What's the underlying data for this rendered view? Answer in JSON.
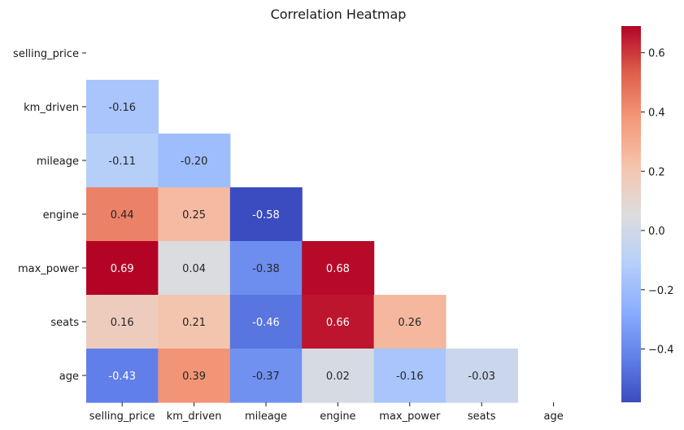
{
  "chart_data": {
    "type": "heatmap",
    "title": "Correlation Heatmap",
    "xlabel": "",
    "ylabel": "",
    "variables": [
      "selling_price",
      "km_driven",
      "mileage",
      "engine",
      "max_power",
      "seats",
      "age"
    ],
    "mask": "upper-triangle-including-diagonal",
    "matrix": [
      [
        null,
        null,
        null,
        null,
        null,
        null,
        null
      ],
      [
        -0.16,
        null,
        null,
        null,
        null,
        null,
        null
      ],
      [
        -0.11,
        -0.2,
        null,
        null,
        null,
        null,
        null
      ],
      [
        0.44,
        0.25,
        -0.58,
        null,
        null,
        null,
        null
      ],
      [
        0.69,
        0.04,
        -0.38,
        0.68,
        null,
        null,
        null
      ],
      [
        0.16,
        0.21,
        -0.46,
        0.66,
        0.26,
        null,
        null
      ],
      [
        -0.43,
        0.39,
        -0.37,
        0.02,
        -0.16,
        -0.03,
        null
      ]
    ],
    "annotations": [
      [
        null,
        null,
        null,
        null,
        null,
        null,
        null
      ],
      [
        "-0.16",
        null,
        null,
        null,
        null,
        null,
        null
      ],
      [
        "-0.11",
        "-0.20",
        null,
        null,
        null,
        null,
        null
      ],
      [
        "0.44",
        "0.25",
        "-0.58",
        null,
        null,
        null,
        null
      ],
      [
        "0.69",
        "0.04",
        "-0.38",
        "0.68",
        null,
        null,
        null
      ],
      [
        "0.16",
        "0.21",
        "-0.46",
        "0.66",
        "0.26",
        null,
        null
      ],
      [
        "-0.43",
        "0.39",
        "-0.37",
        "0.02",
        "-0.16",
        "-0.03",
        null
      ]
    ],
    "colormap": "coolwarm",
    "vmin": -0.58,
    "vmax": 0.69,
    "colorbar": {
      "ticks": [
        -0.4,
        -0.2,
        0.0,
        0.2,
        0.4,
        0.6
      ],
      "tick_labels": [
        "−0.4",
        "−0.2",
        "0.0",
        "0.2",
        "0.4",
        "0.6"
      ]
    },
    "grid": false,
    "legend": "colorbar-right"
  }
}
